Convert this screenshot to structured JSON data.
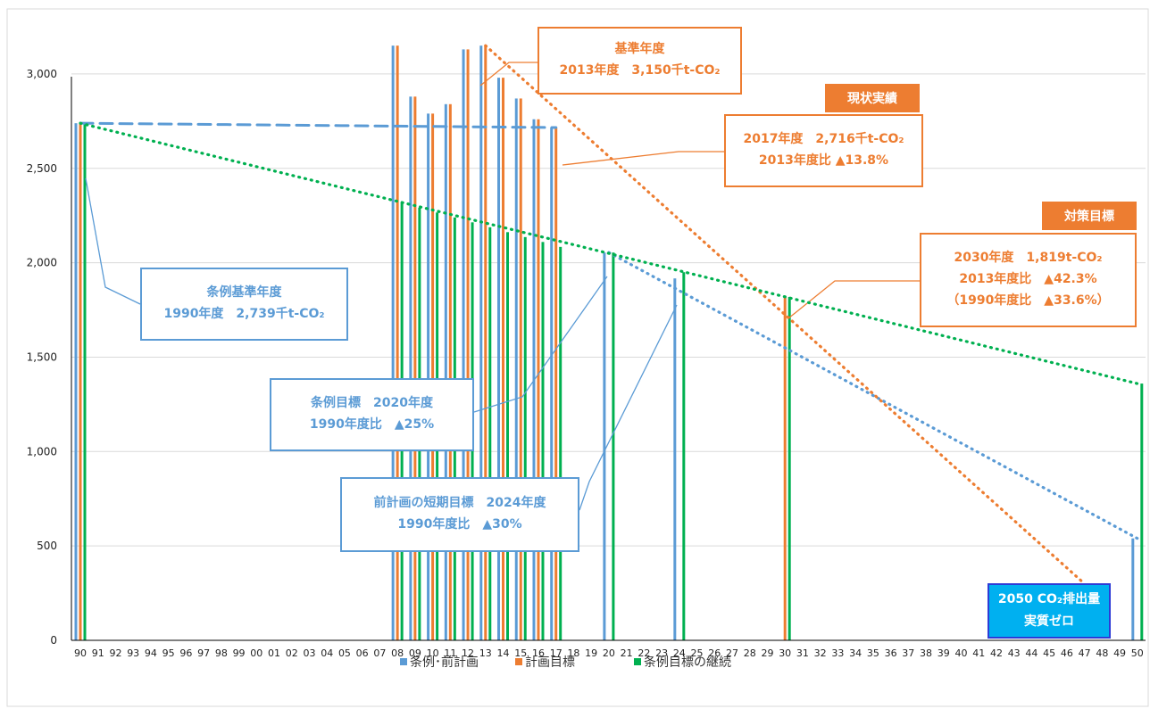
{
  "chart_data": {
    "type": "bar",
    "x": [
      "90",
      "91",
      "92",
      "93",
      "94",
      "95",
      "96",
      "97",
      "98",
      "99",
      "00",
      "01",
      "02",
      "03",
      "04",
      "05",
      "06",
      "07",
      "08",
      "09",
      "10",
      "11",
      "12",
      "13",
      "14",
      "15",
      "16",
      "17",
      "18",
      "19",
      "20",
      "21",
      "22",
      "23",
      "24",
      "25",
      "26",
      "27",
      "28",
      "29",
      "30",
      "31",
      "32",
      "33",
      "34",
      "35",
      "36",
      "37",
      "38",
      "39",
      "40",
      "41",
      "42",
      "43",
      "44",
      "45",
      "46",
      "47",
      "48",
      "49",
      "50"
    ],
    "ylim": [
      0,
      3250
    ],
    "yticks": [
      0,
      500,
      1000,
      1500,
      2000,
      2500,
      3000
    ],
    "ytick_labels": [
      "0",
      "500",
      "1,000",
      "1,500",
      "2,000",
      "2,500",
      "3,000"
    ],
    "grid": true,
    "legend_position": "bottom",
    "colors": {
      "blue": "#5b9bd5",
      "orange": "#ed7d31",
      "green": "#00b050"
    },
    "series": [
      {
        "name": "条例･前計画",
        "color": "#5b9bd5",
        "points": [
          [
            "90",
            2739
          ],
          [
            "08",
            3150
          ],
          [
            "09",
            2880
          ],
          [
            "10",
            2790
          ],
          [
            "11",
            2840
          ],
          [
            "12",
            3130
          ],
          [
            "13",
            3150
          ],
          [
            "14",
            2980
          ],
          [
            "15",
            2870
          ],
          [
            "16",
            2760
          ],
          [
            "17",
            2716
          ],
          [
            "20",
            2054
          ],
          [
            "24",
            1917
          ],
          [
            "50",
            540
          ]
        ]
      },
      {
        "name": "計画目標",
        "color": "#ed7d31",
        "points": [
          [
            "90",
            2739
          ],
          [
            "08",
            3150
          ],
          [
            "09",
            2880
          ],
          [
            "10",
            2790
          ],
          [
            "11",
            2840
          ],
          [
            "12",
            3130
          ],
          [
            "13",
            3150
          ],
          [
            "14",
            2980
          ],
          [
            "15",
            2870
          ],
          [
            "16",
            2760
          ],
          [
            "17",
            2716
          ],
          [
            "30",
            1819
          ]
        ]
      },
      {
        "name": "条例目標の継続",
        "color": "#00b050",
        "points": [
          [
            "90",
            2739
          ],
          [
            "08",
            2318
          ],
          [
            "09",
            2292
          ],
          [
            "10",
            2266
          ],
          [
            "11",
            2240
          ],
          [
            "12",
            2214
          ],
          [
            "13",
            2188
          ],
          [
            "14",
            2162
          ],
          [
            "15",
            2136
          ],
          [
            "16",
            2110
          ],
          [
            "17",
            2084
          ],
          [
            "20",
            2054
          ],
          [
            "24",
            1950
          ],
          [
            "30",
            1819
          ],
          [
            "50",
            1360
          ]
        ]
      }
    ],
    "trend_lines": [
      {
        "color": "#5b9bd5",
        "style": "dashed",
        "points": [
          [
            "90",
            2739
          ],
          [
            "17",
            2716
          ]
        ]
      },
      {
        "color": "#5b9bd5",
        "style": "dotted",
        "points": [
          [
            "20",
            2054
          ],
          [
            "50",
            540
          ]
        ]
      },
      {
        "color": "#ed7d31",
        "style": "dotted",
        "points": [
          [
            "13",
            3150
          ],
          [
            "47",
            300
          ]
        ]
      },
      {
        "color": "#00b050",
        "style": "dotted",
        "points": [
          [
            "90",
            2739
          ],
          [
            "50",
            1360
          ]
        ]
      }
    ],
    "annotations": {
      "base_year": {
        "line1": "基準年度",
        "line2": "2013年度　3,150千t-CO₂"
      },
      "current_tag": "現状実績",
      "current": {
        "line1": "2017年度　2,716千t-CO₂",
        "line2": "2013年度比 ▲13.8%"
      },
      "target_tag": "対策目標",
      "target": {
        "line1": "2030年度　1,819t-CO₂",
        "line2": "2013年度比　▲42.3%",
        "line3": "（1990年度比　▲33.6%）"
      },
      "ordinance_base": {
        "line1": "条例基準年度",
        "line2": "1990年度　2,739千t-CO₂"
      },
      "ordinance_goal": {
        "line1": "条例目標　2020年度",
        "line2": "1990年度比　▲25%"
      },
      "short_goal": {
        "line1": "前計画の短期目標　2024年度",
        "line2": "1990年度比　▲30%"
      },
      "zero": {
        "line1": "2050 CO₂排出量",
        "line2": "実質ゼロ"
      }
    }
  }
}
